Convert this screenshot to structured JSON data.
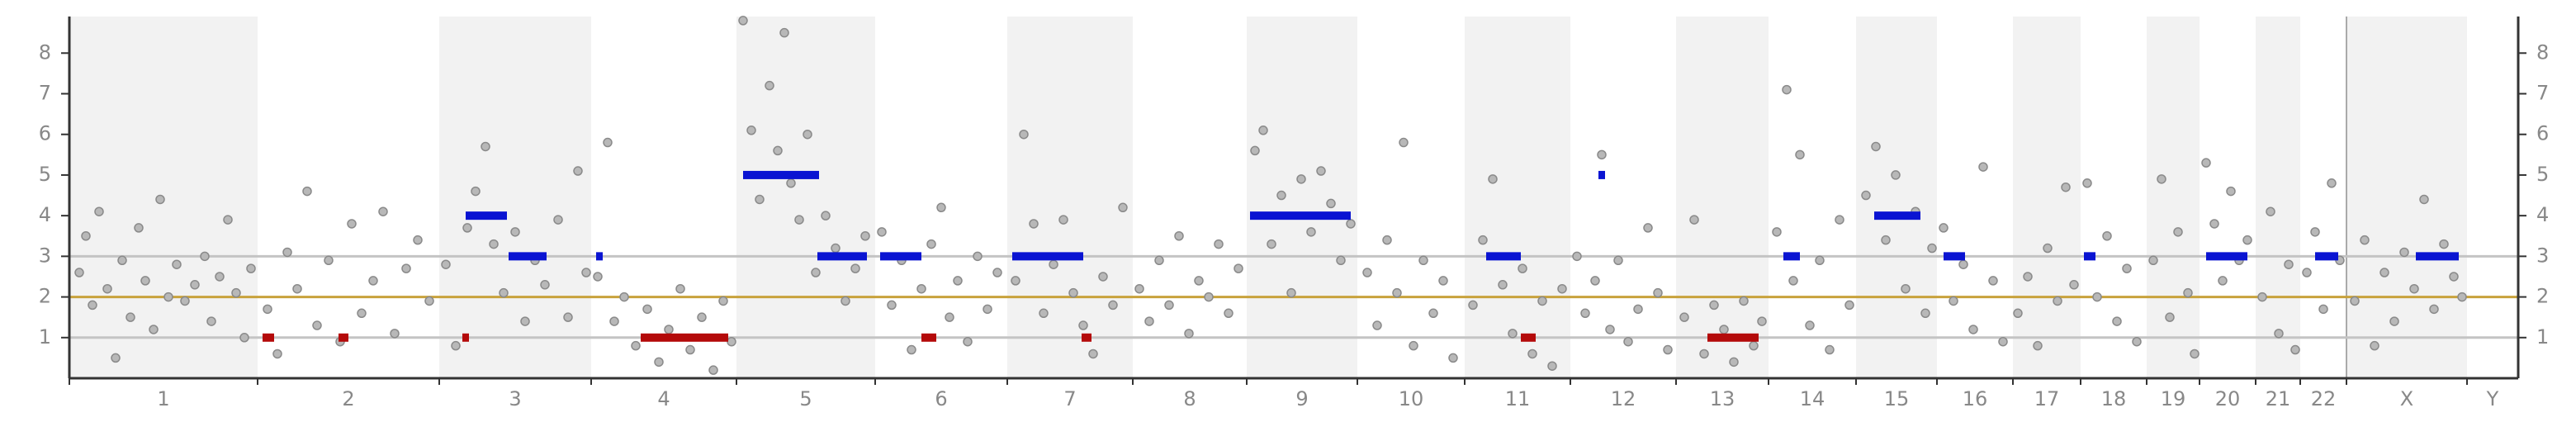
{
  "chart_data": {
    "type": "scatter",
    "xlim": [
      42,
      1525
    ],
    "ylim": [
      0,
      8.9
    ],
    "yticks": [
      1,
      2,
      3,
      4,
      5,
      6,
      7,
      8
    ],
    "chromosomes": {
      "labels": [
        "1",
        "2",
        "3",
        "4",
        "5",
        "6",
        "7",
        "8",
        "9",
        "10",
        "11",
        "12",
        "13",
        "14",
        "15",
        "16",
        "17",
        "18",
        "19",
        "20",
        "21",
        "22",
        "X",
        "Y"
      ],
      "start": [
        42,
        156,
        266,
        358,
        446,
        530,
        610,
        686,
        755,
        822,
        887,
        951,
        1015,
        1071,
        1124,
        1173,
        1219,
        1260,
        1300,
        1332,
        1366,
        1393,
        1421,
        1494
      ],
      "end": [
        156,
        266,
        358,
        446,
        530,
        610,
        686,
        755,
        822,
        887,
        951,
        1015,
        1071,
        1124,
        1173,
        1219,
        1260,
        1300,
        1332,
        1366,
        1393,
        1421,
        1494,
        1525
      ]
    },
    "x_divider": 1421,
    "reference_lines": [
      {
        "value": 1,
        "color": "#c4c4c4"
      },
      {
        "value": 2,
        "color": "#c8a23c"
      },
      {
        "value": 3,
        "color": "#c4c4c4"
      }
    ],
    "points": {
      "color": "#b8b8b8",
      "x": [
        48,
        52,
        56,
        60,
        65,
        70,
        74,
        79,
        84,
        88,
        93,
        97,
        102,
        107,
        112,
        118,
        124,
        128,
        133,
        138,
        143,
        148,
        152,
        162,
        168,
        174,
        180,
        186,
        192,
        199,
        206,
        213,
        219,
        226,
        232,
        239,
        246,
        253,
        260,
        270,
        276,
        283,
        288,
        294,
        299,
        305,
        312,
        318,
        324,
        330,
        338,
        344,
        350,
        355,
        362,
        368,
        372,
        378,
        385,
        392,
        399,
        405,
        412,
        418,
        425,
        432,
        438,
        443,
        450,
        455,
        460,
        466,
        471,
        475,
        479,
        484,
        489,
        494,
        500,
        506,
        512,
        518,
        524,
        534,
        540,
        546,
        552,
        558,
        564,
        570,
        575,
        580,
        586,
        592,
        598,
        604,
        615,
        620,
        626,
        632,
        638,
        644,
        650,
        656,
        662,
        668,
        674,
        680,
        690,
        696,
        702,
        708,
        714,
        720,
        726,
        732,
        738,
        744,
        750,
        760,
        765,
        770,
        776,
        782,
        788,
        794,
        800,
        806,
        812,
        818,
        828,
        834,
        840,
        846,
        850,
        856,
        862,
        868,
        874,
        880,
        892,
        898,
        904,
        910,
        916,
        922,
        928,
        934,
        940,
        946,
        955,
        960,
        966,
        970,
        975,
        980,
        986,
        992,
        998,
        1004,
        1010,
        1020,
        1026,
        1032,
        1038,
        1044,
        1050,
        1056,
        1062,
        1067,
        1076,
        1082,
        1086,
        1090,
        1096,
        1102,
        1108,
        1114,
        1120,
        1130,
        1136,
        1142,
        1148,
        1154,
        1160,
        1166,
        1170,
        1177,
        1183,
        1189,
        1195,
        1201,
        1207,
        1213,
        1222,
        1228,
        1234,
        1240,
        1246,
        1251,
        1256,
        1264,
        1270,
        1276,
        1282,
        1288,
        1294,
        1304,
        1309,
        1314,
        1319,
        1325,
        1329,
        1336,
        1341,
        1346,
        1351,
        1356,
        1361,
        1370,
        1375,
        1380,
        1386,
        1390,
        1397,
        1402,
        1407,
        1412,
        1417,
        1426,
        1432,
        1438,
        1444,
        1450,
        1456,
        1462,
        1468,
        1474,
        1480,
        1486,
        1491
      ],
      "values": [
        2.6,
        3.5,
        1.8,
        4.1,
        2.2,
        0.5,
        2.9,
        1.5,
        3.7,
        2.4,
        1.2,
        4.4,
        2.0,
        2.8,
        1.9,
        2.3,
        3.0,
        1.4,
        2.5,
        3.9,
        2.1,
        1.0,
        2.7,
        1.7,
        0.6,
        3.1,
        2.2,
        4.6,
        1.3,
        2.9,
        0.9,
        3.8,
        1.6,
        2.4,
        4.1,
        1.1,
        2.7,
        3.4,
        1.9,
        2.8,
        0.8,
        3.7,
        4.6,
        5.7,
        3.3,
        2.1,
        3.6,
        1.4,
        2.9,
        2.3,
        3.9,
        1.5,
        5.1,
        2.6,
        2.5,
        5.8,
        1.4,
        2.0,
        0.8,
        1.7,
        0.4,
        1.2,
        2.2,
        0.7,
        1.5,
        0.2,
        1.9,
        0.9,
        8.8,
        6.1,
        4.4,
        7.2,
        5.6,
        8.5,
        4.8,
        3.9,
        6.0,
        2.6,
        4.0,
        3.2,
        1.9,
        2.7,
        3.5,
        3.6,
        1.8,
        2.9,
        0.7,
        2.2,
        3.3,
        4.2,
        1.5,
        2.4,
        0.9,
        3.0,
        1.7,
        2.6,
        2.4,
        6.0,
        3.8,
        1.6,
        2.8,
        3.9,
        2.1,
        1.3,
        0.6,
        2.5,
        1.8,
        4.2,
        2.2,
        1.4,
        2.9,
        1.8,
        3.5,
        1.1,
        2.4,
        2.0,
        3.3,
        1.6,
        2.7,
        5.6,
        6.1,
        3.3,
        4.5,
        2.1,
        4.9,
        3.6,
        5.1,
        4.3,
        2.9,
        3.8,
        2.6,
        1.3,
        3.4,
        2.1,
        5.8,
        0.8,
        2.9,
        1.6,
        2.4,
        0.5,
        1.8,
        3.4,
        4.9,
        2.3,
        1.1,
        2.7,
        0.6,
        1.9,
        0.3,
        2.2,
        3.0,
        1.6,
        2.4,
        5.5,
        1.2,
        2.9,
        0.9,
        1.7,
        3.7,
        2.1,
        0.7,
        1.5,
        3.9,
        0.6,
        1.8,
        1.2,
        0.4,
        1.9,
        0.8,
        1.4,
        3.6,
        7.1,
        2.4,
        5.5,
        1.3,
        2.9,
        0.7,
        3.9,
        1.8,
        4.5,
        5.7,
        3.4,
        5.0,
        2.2,
        4.1,
        1.6,
        3.2,
        3.7,
        1.9,
        2.8,
        1.2,
        5.2,
        2.4,
        0.9,
        1.6,
        2.5,
        0.8,
        3.2,
        1.9,
        4.7,
        2.3,
        4.8,
        2.0,
        3.5,
        1.4,
        2.7,
        0.9,
        2.9,
        4.9,
        1.5,
        3.6,
        2.1,
        0.6,
        5.3,
        3.8,
        2.4,
        4.6,
        2.9,
        3.4,
        2.0,
        4.1,
        1.1,
        2.8,
        0.7,
        2.6,
        3.6,
        1.7,
        4.8,
        2.9,
        1.9,
        3.4,
        0.8,
        2.6,
        1.4,
        3.1,
        2.2,
        4.4,
        1.7,
        3.3,
        2.5,
        2.0
      ]
    },
    "segments": [
      {
        "color": "#0a14d2",
        "start": [
          282,
          308,
          361,
          450,
          495,
          533,
          613,
          757,
          900,
          968,
          1080,
          1135,
          1177,
          1262,
          1336,
          1402,
          1463
        ],
        "end": [
          307,
          331,
          365,
          496,
          525,
          558,
          656,
          818,
          921,
          972,
          1090,
          1163,
          1190,
          1269,
          1361,
          1416,
          1489
        ],
        "values": [
          4,
          3,
          3,
          5,
          3,
          3,
          3,
          4,
          3,
          5,
          3,
          4,
          3,
          3,
          3,
          3,
          3
        ]
      },
      {
        "color": "#b40a0a",
        "start": [
          159,
          205,
          280,
          388,
          558,
          655,
          921,
          1034
        ],
        "end": [
          166,
          211,
          284,
          441,
          567,
          661,
          930,
          1065
        ],
        "values": [
          1,
          1,
          1,
          1,
          1,
          1,
          1,
          1
        ]
      }
    ]
  }
}
